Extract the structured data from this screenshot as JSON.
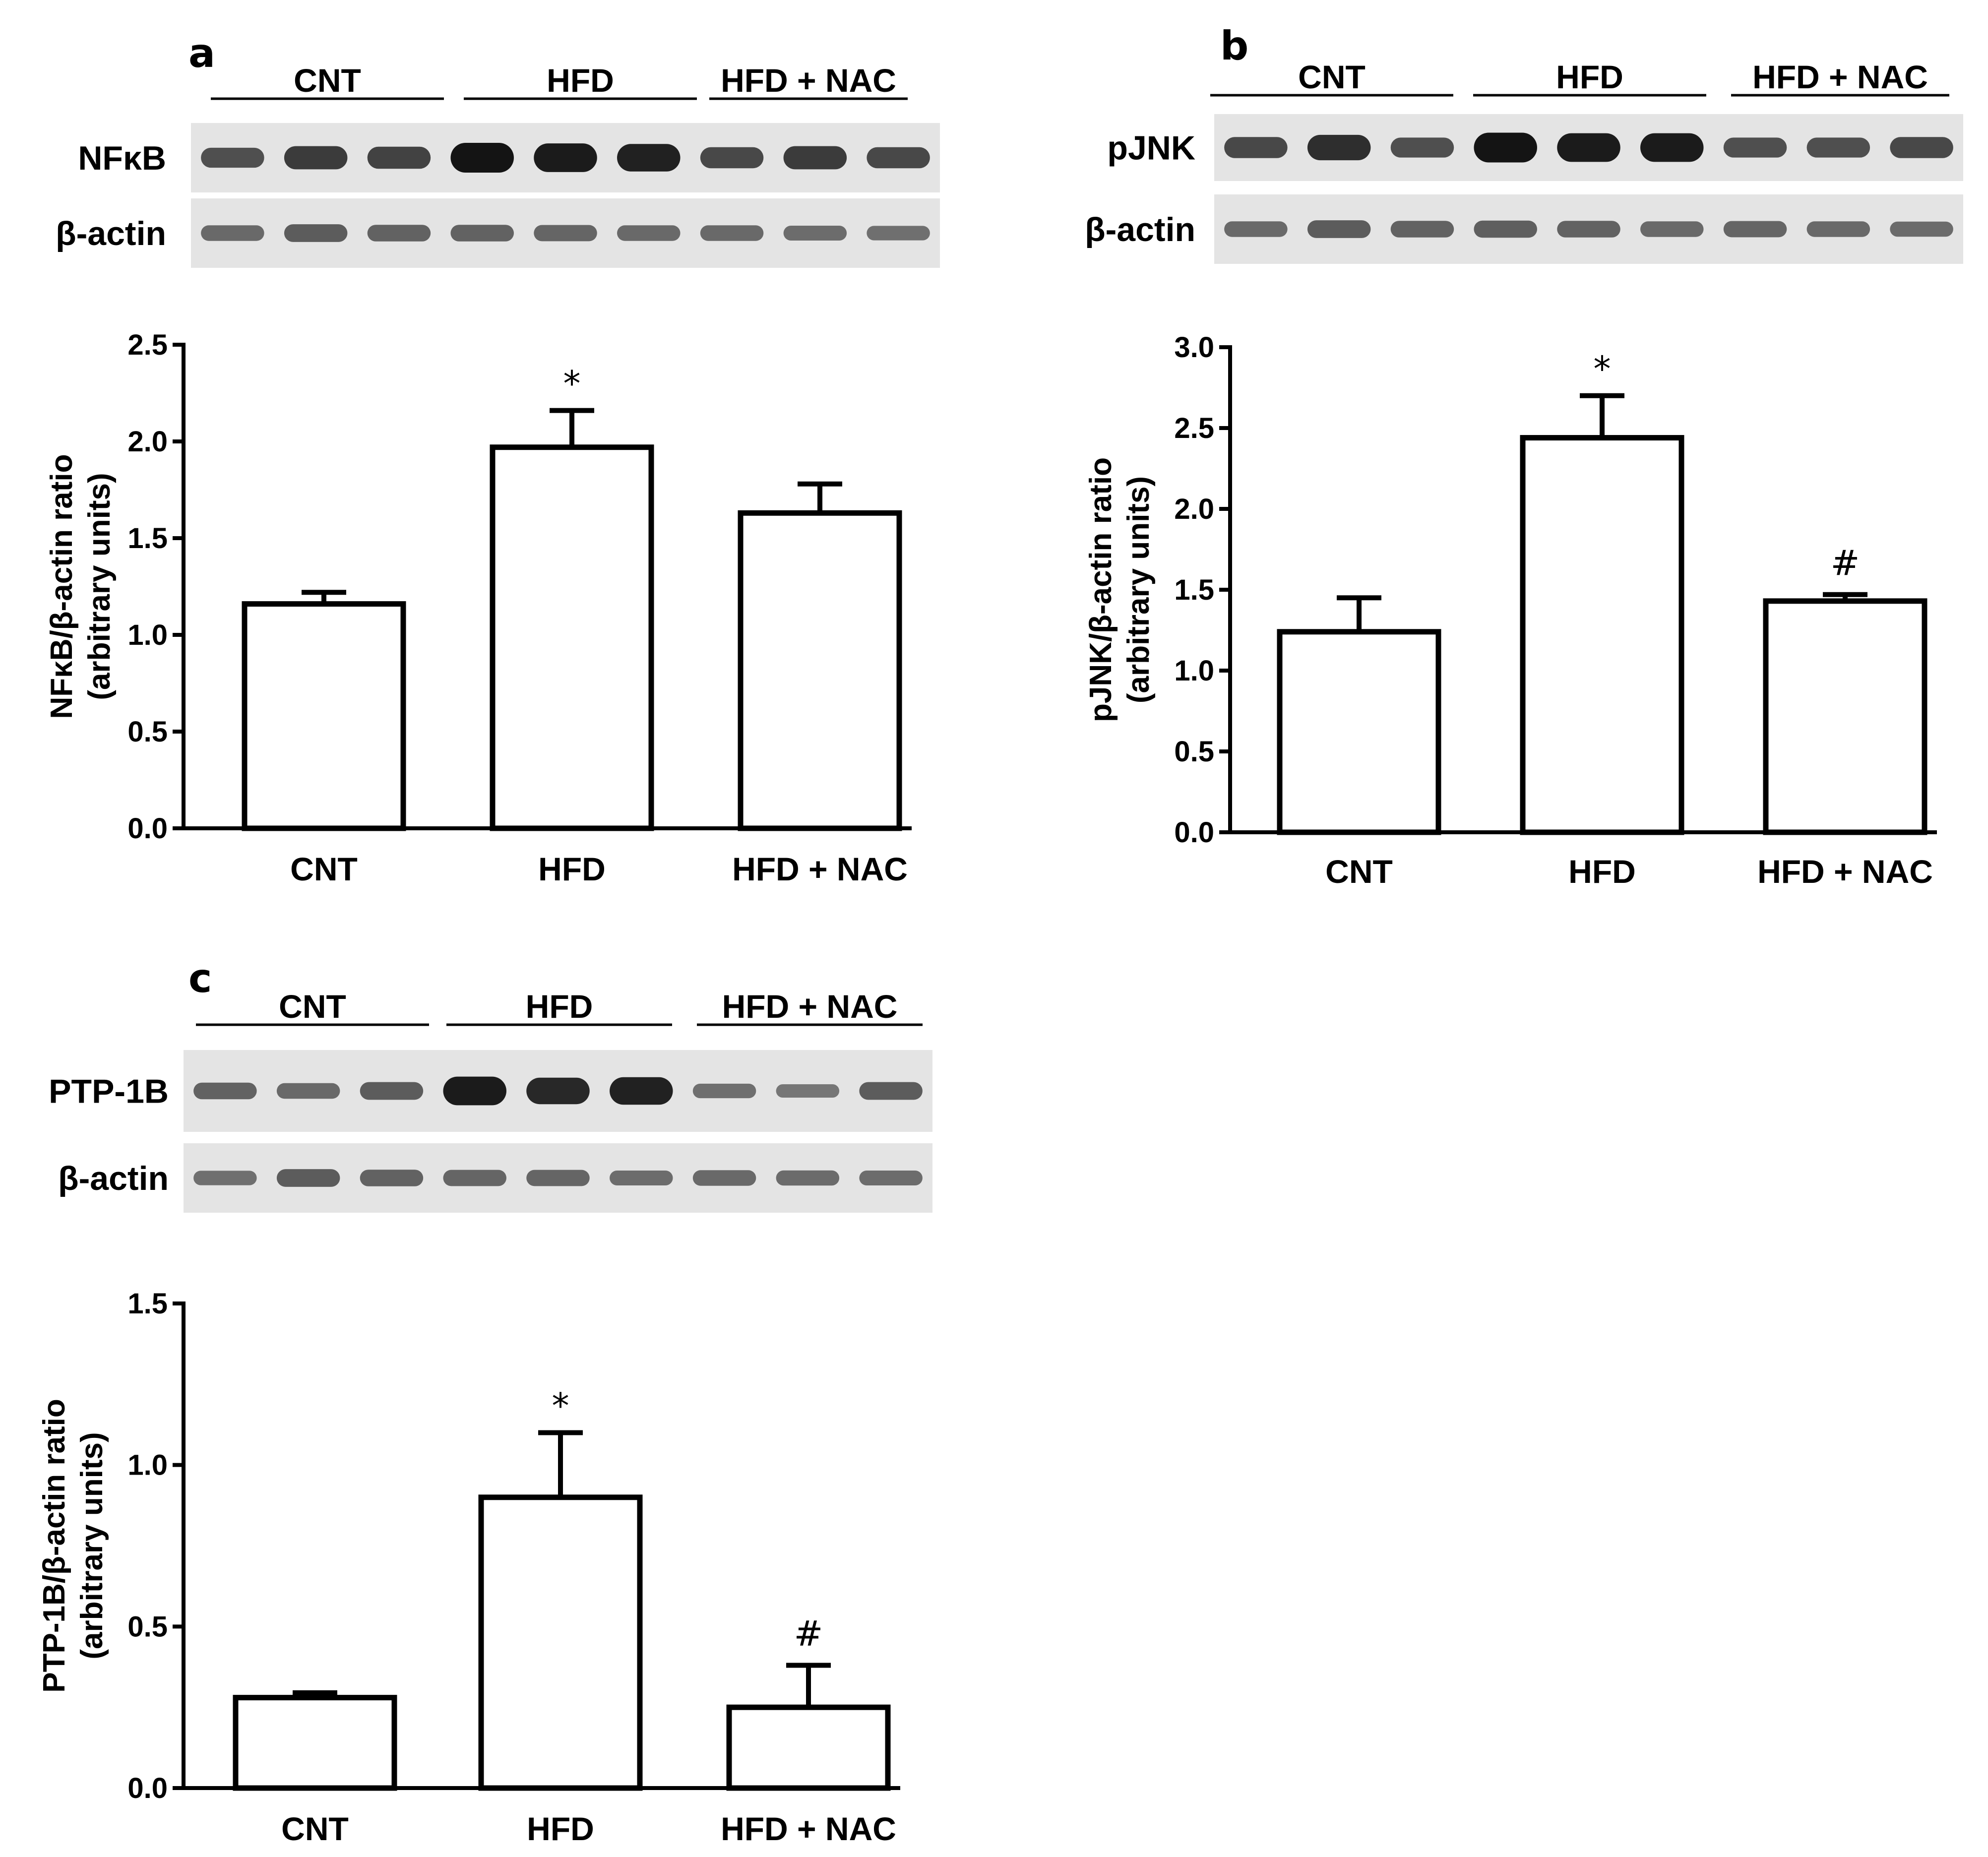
{
  "panels": [
    {
      "label": "a",
      "blot": {
        "groups": [
          "CNT",
          "HFD",
          "HFD + NAC"
        ],
        "rows": [
          {
            "label": "NFκB",
            "band_intensity": [
              0.55,
              0.7,
              0.65,
              1.0,
              0.95,
              0.9,
              0.6,
              0.7,
              0.6
            ]
          },
          {
            "label": "β-actin",
            "band_intensity": [
              0.35,
              0.45,
              0.4,
              0.4,
              0.38,
              0.35,
              0.35,
              0.32,
              0.3
            ]
          }
        ]
      },
      "chart_data": {
        "type": "bar",
        "categories": [
          "CNT",
          "HFD",
          "HFD + NAC"
        ],
        "values": [
          1.16,
          1.97,
          1.63
        ],
        "errors": [
          0.06,
          0.19,
          0.15
        ],
        "annotations": [
          "",
          "*",
          ""
        ],
        "ylabel": [
          "NFκB/β-actin ratio",
          "(arbitrary units)"
        ],
        "ylim": [
          0,
          2.5
        ],
        "yticks": [
          "0.0",
          "0.5",
          "1.0",
          "1.5",
          "2.0",
          "2.5"
        ],
        "grid": false
      }
    },
    {
      "label": "b",
      "blot": {
        "groups": [
          "CNT",
          "HFD",
          "HFD + NAC"
        ],
        "rows": [
          {
            "label": "pJNK",
            "band_intensity": [
              0.6,
              0.8,
              0.55,
              1.0,
              0.95,
              0.95,
              0.55,
              0.55,
              0.6
            ]
          },
          {
            "label": "β-actin",
            "band_intensity": [
              0.35,
              0.45,
              0.4,
              0.42,
              0.4,
              0.35,
              0.38,
              0.35,
              0.33
            ]
          }
        ]
      },
      "chart_data": {
        "type": "bar",
        "categories": [
          "CNT",
          "HFD",
          "HFD + NAC"
        ],
        "values": [
          1.24,
          2.44,
          1.43
        ],
        "errors": [
          0.21,
          0.26,
          0.04
        ],
        "annotations": [
          "",
          "*",
          "#"
        ],
        "ylabel": [
          "pJNK/β-actin ratio",
          "(arbitrary units)"
        ],
        "ylim": [
          0,
          3.0
        ],
        "yticks": [
          "0.0",
          "0.5",
          "1.0",
          "1.5",
          "2.0",
          "2.5",
          "3.0"
        ],
        "grid": false
      }
    },
    {
      "label": "c",
      "blot": {
        "groups": [
          "CNT",
          "HFD",
          "HFD + NAC"
        ],
        "rows": [
          {
            "label": "PTP-1B",
            "band_intensity": [
              0.4,
              0.35,
              0.45,
              0.95,
              0.85,
              0.9,
              0.3,
              0.25,
              0.45
            ]
          },
          {
            "label": "β-actin",
            "band_intensity": [
              0.3,
              0.45,
              0.4,
              0.38,
              0.38,
              0.32,
              0.35,
              0.33,
              0.32
            ]
          }
        ]
      },
      "chart_data": {
        "type": "bar",
        "categories": [
          "CNT",
          "HFD",
          "HFD + NAC"
        ],
        "values": [
          0.28,
          0.9,
          0.25
        ],
        "errors": [
          0.015,
          0.2,
          0.13
        ],
        "annotations": [
          "",
          "*",
          "#"
        ],
        "ylabel": [
          "PTP-1B/β-actin ratio",
          "(arbitrary units)"
        ],
        "ylim": [
          0,
          1.5
        ],
        "yticks": [
          "0.0",
          "0.5",
          "1.0",
          "1.5"
        ],
        "grid": false
      }
    }
  ]
}
